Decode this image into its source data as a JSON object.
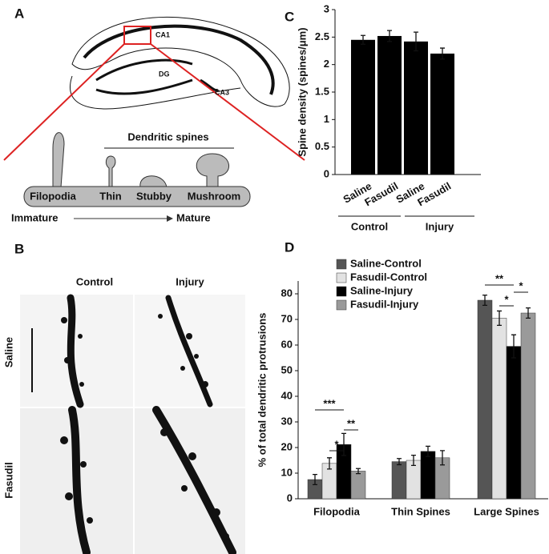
{
  "panel_labels": [
    "A",
    "B",
    "C",
    "D"
  ],
  "panel_a": {
    "regions": [
      "CA1",
      "DG",
      "CA3"
    ],
    "heading": "Dendritic spines",
    "spine_types": [
      "Filopodia",
      "Thin",
      "Stubby",
      "Mushroom"
    ],
    "from": "Immature",
    "to": "Mature"
  },
  "panel_b": {
    "columns": [
      "Control",
      "Injury"
    ],
    "rows": [
      "Saline",
      "Fasudil"
    ]
  },
  "chart_data": [
    {
      "type": "bar",
      "y_label": "Spine density (spines/μm)",
      "categories": [
        "Saline",
        "Fasudil",
        "Saline",
        "Fasudil"
      ],
      "groups": [
        "Control",
        "Injury"
      ],
      "values": [
        2.45,
        2.52,
        2.42,
        2.2
      ],
      "errors": [
        0.08,
        0.1,
        0.17,
        0.1
      ],
      "color": "#000000",
      "ylim": [
        0,
        3
      ],
      "yticks": [
        0,
        0.5,
        1,
        1.5,
        2,
        2.5,
        3
      ]
    },
    {
      "type": "grouped-bar",
      "y_label": "% of total dendritic protrusions",
      "categories": [
        "Filopodia",
        "Thin Spines",
        "Large Spines"
      ],
      "series": [
        {
          "name": "Saline-Control",
          "color": "#555555",
          "values": [
            7.5,
            14.5,
            77.5
          ],
          "errors": [
            2,
            1.2,
            2
          ]
        },
        {
          "name": "Fasudil-Control",
          "color": "#e2e2e2",
          "values": [
            13.8,
            15,
            70.5
          ],
          "errors": [
            2.2,
            2,
            2.8
          ]
        },
        {
          "name": "Saline-Injury",
          "color": "#000000",
          "values": [
            21.2,
            18.5,
            59.5
          ],
          "errors": [
            4.3,
            2,
            4.5
          ]
        },
        {
          "name": "Fasudil-Injury",
          "color": "#9a9a9a",
          "values": [
            10.8,
            16,
            72.5
          ],
          "errors": [
            1,
            2.8,
            2
          ]
        }
      ],
      "annotations": [
        "***",
        "*",
        "**",
        "**",
        "*",
        "*"
      ],
      "ylim": [
        0,
        85
      ],
      "yticks": [
        0,
        10,
        20,
        30,
        40,
        50,
        60,
        70,
        80
      ],
      "legend": "top-left"
    }
  ]
}
